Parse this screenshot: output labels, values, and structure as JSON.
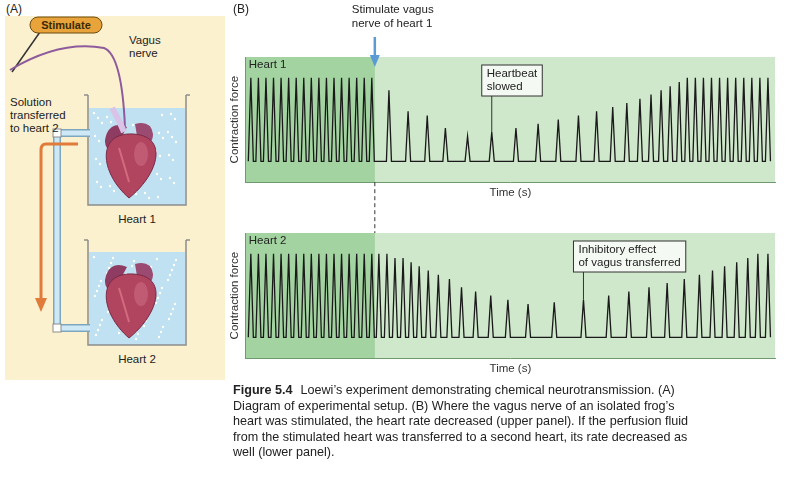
{
  "panel_labels": [
    "(A)",
    "(B)"
  ],
  "diagram": {
    "stimulator": "Stimulate",
    "nerve_label": [
      "Vagus",
      "nerve"
    ],
    "transfer_label": [
      "Solution",
      "transferred",
      "to heart 2"
    ],
    "hearts": [
      "Heart 1",
      "Heart 2"
    ]
  },
  "chart_data": [
    {
      "type": "line",
      "title": "Heart 1",
      "x_label": "Time (s)",
      "y_label": "Contraction force",
      "xlim": [
        0,
        525
      ],
      "ylim": [
        -0.25,
        1.25
      ],
      "xticks": [],
      "yticks": [],
      "tick_labels": false,
      "grid": false,
      "color": "#1a1a1a",
      "baseline": 0,
      "x": [
        5,
        12.5,
        20,
        27.5,
        35,
        42.5,
        50,
        57.5,
        65,
        72.5,
        80,
        87.5,
        95,
        102.5,
        110,
        117.5,
        125,
        142,
        161,
        180,
        198,
        220,
        244,
        268,
        290,
        310,
        330,
        348,
        364,
        378,
        391,
        402,
        412,
        421,
        430,
        438,
        446,
        454,
        462,
        470,
        478,
        486,
        494,
        502,
        510,
        518
      ],
      "values": [
        1,
        1,
        1,
        1,
        1,
        1,
        1,
        1,
        1,
        1,
        1,
        1,
        1,
        1,
        1,
        1,
        1,
        0.85,
        0.6,
        0.55,
        0.4,
        0.3,
        0.35,
        0.4,
        0.45,
        0.5,
        0.55,
        0.6,
        0.65,
        0.7,
        0.75,
        0.8,
        0.85,
        0.9,
        0.95,
        1,
        1,
        1,
        1,
        1,
        1,
        1,
        1,
        1,
        1,
        1
      ],
      "stimulus": {
        "x": 128,
        "text": [
          "Stimulate vagus",
          "nerve of heart 1"
        ]
      },
      "annotations": [
        {
          "text": [
            "Heartbeat",
            "slowed"
          ],
          "x": 244
        }
      ]
    },
    {
      "type": "line",
      "title": "Heart 2",
      "x_label": "Time (s)",
      "y_label": "Contraction force",
      "xlim": [
        0,
        525
      ],
      "ylim": [
        -0.25,
        1.25
      ],
      "xticks": [],
      "yticks": [],
      "tick_labels": false,
      "grid": false,
      "color": "#1a1a1a",
      "baseline": 0,
      "x": [
        5,
        12.5,
        20,
        27.5,
        35,
        42.5,
        50,
        57.5,
        65,
        72.5,
        80,
        87.5,
        95,
        102.5,
        110,
        117.5,
        125,
        132,
        140,
        148,
        156,
        164,
        172,
        181,
        191,
        202,
        214,
        228,
        243,
        260,
        280,
        306,
        335,
        360,
        380,
        400,
        418,
        435,
        450,
        463,
        475,
        487,
        498,
        508,
        518
      ],
      "values": [
        1,
        1,
        1,
        1,
        1,
        1,
        1,
        1,
        1,
        1,
        1,
        1,
        1,
        1,
        1,
        1,
        1,
        1,
        1,
        0.95,
        0.95,
        0.9,
        0.85,
        0.8,
        0.75,
        0.7,
        0.6,
        0.55,
        0.5,
        0.45,
        0.4,
        0.42,
        0.45,
        0.5,
        0.55,
        0.6,
        0.65,
        0.7,
        0.75,
        0.8,
        0.85,
        0.9,
        0.95,
        1,
        1
      ],
      "stimulus": {
        "x": 128
      },
      "annotations": [
        {
          "text": [
            "Inhibitory effect",
            "of vagus transferred"
          ],
          "x": 335
        }
      ]
    }
  ],
  "caption": {
    "label": "Figure 5.4",
    "lines": [
      "Loewi’s experiment demonstrating chemical neurotransmission. (A)",
      "Diagram of experimental setup. (B) Where the vagus nerve of an isolated frog’s",
      "heart was stimulated, the heart rate decreased (upper panel). If the perfusion fluid",
      "from the stimulated heart was transferred to a second heart, its rate decreased as",
      "well (lower panel)."
    ]
  }
}
